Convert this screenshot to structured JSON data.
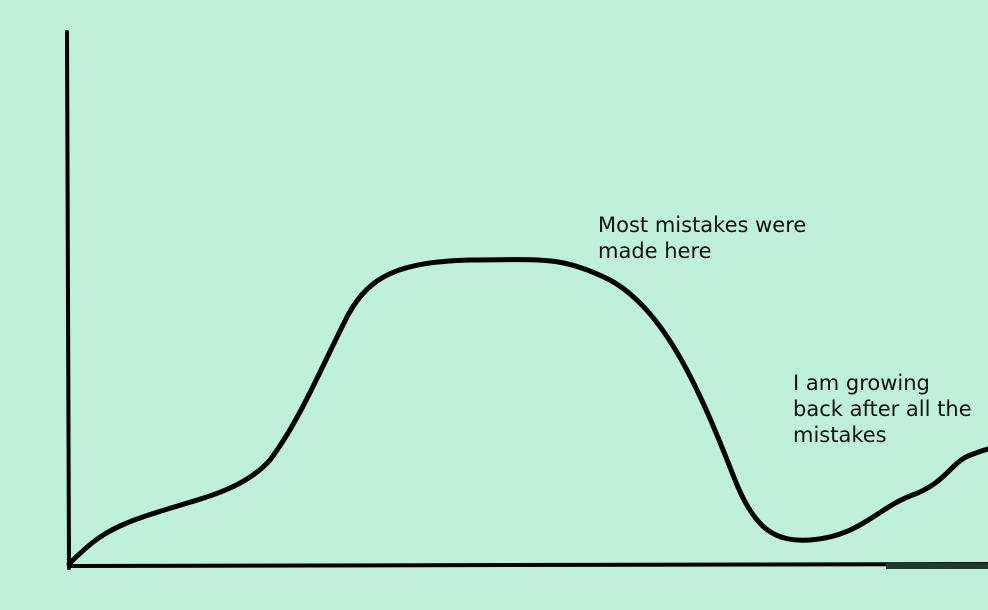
{
  "colors": {
    "background": "#bff0da",
    "line": "#000000",
    "text": "#111111",
    "baseline_accent": "#1e3a2c"
  },
  "chart_data": {
    "type": "line",
    "title": "",
    "xlabel": "",
    "ylabel": "",
    "grid": false,
    "legend": "none",
    "xlim": [
      0,
      100
    ],
    "ylim": [
      0,
      100
    ],
    "series": [
      {
        "x": [
          0,
          5,
          10,
          15,
          20,
          25,
          30,
          35,
          40,
          45,
          50,
          55,
          60,
          65,
          70,
          75,
          80,
          85,
          90,
          95,
          100
        ],
        "y": [
          0,
          7,
          11,
          15,
          19,
          33,
          52,
          57,
          58,
          57.5,
          54,
          46,
          31,
          12,
          5,
          5,
          8,
          14,
          17,
          20,
          21
        ]
      }
    ],
    "annotations": [
      {
        "text": "Most mistakes were\nmade here"
      },
      {
        "text": "I am growing\nback after all the\nmistakes"
      }
    ]
  }
}
